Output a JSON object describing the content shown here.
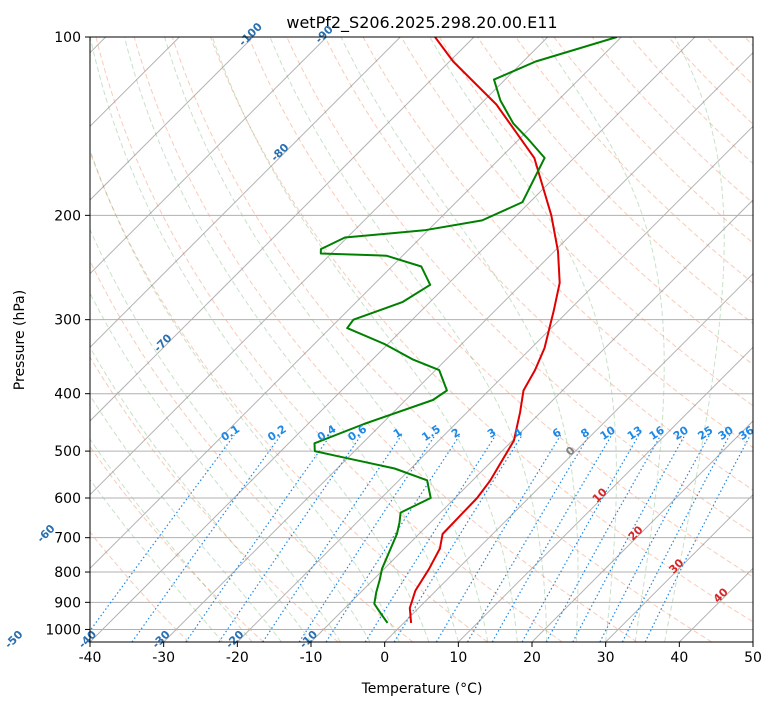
{
  "chart_data": {
    "type": "line",
    "title": "wetPf2_S206.2025.298.20.00.E11",
    "xlabel": "Temperature (°C)",
    "ylabel": "Pressure (hPa)",
    "xlim": [
      -40,
      50
    ],
    "ylim": [
      1050,
      100
    ],
    "y_scale": "log",
    "skew": 1.0,
    "grid": true,
    "x_ticks": [
      -40,
      -30,
      -20,
      -10,
      0,
      10,
      20,
      30,
      40,
      50
    ],
    "y_ticks": [
      1000,
      900,
      800,
      700,
      600,
      500,
      400,
      300,
      200,
      100
    ],
    "series": [
      {
        "color": "#e00000",
        "points": [
          [
            1.0,
            975
          ],
          [
            -1.2,
            920
          ],
          [
            -2.8,
            860
          ],
          [
            -3.9,
            790
          ],
          [
            -5.2,
            730
          ],
          [
            -6.8,
            690
          ],
          [
            -6.9,
            640
          ],
          [
            -7.0,
            600
          ],
          [
            -7.6,
            560
          ],
          [
            -9.8,
            480
          ],
          [
            -12.8,
            430
          ],
          [
            -15.3,
            395
          ],
          [
            -16.5,
            365
          ],
          [
            -18.2,
            335
          ],
          [
            -22.0,
            290
          ],
          [
            -25.0,
            260
          ],
          [
            -29.5,
            230
          ],
          [
            -35.3,
            200
          ],
          [
            -45.4,
            160
          ],
          [
            -57.8,
            130
          ],
          [
            -69.5,
            110
          ],
          [
            -75.3,
            100
          ]
        ]
      },
      {
        "color": "#008000",
        "points": [
          [
            -2.2,
            975
          ],
          [
            -4.7,
            935
          ],
          [
            -6.6,
            905
          ],
          [
            -7.9,
            865
          ],
          [
            -9.1,
            825
          ],
          [
            -10.3,
            790
          ],
          [
            -11.6,
            740
          ],
          [
            -13.0,
            690
          ],
          [
            -14.2,
            660
          ],
          [
            -15.4,
            635
          ],
          [
            -13.3,
            600
          ],
          [
            -16.2,
            560
          ],
          [
            -22.2,
            535
          ],
          [
            -31.6,
            510
          ],
          [
            -35.4,
            500
          ],
          [
            -36.5,
            485
          ],
          [
            -32.4,
            450
          ],
          [
            -26.3,
            410
          ],
          [
            -25.7,
            395
          ],
          [
            -29.5,
            365
          ],
          [
            -34.6,
            350
          ],
          [
            -40.4,
            330
          ],
          [
            -47.7,
            310
          ],
          [
            -48.0,
            300
          ],
          [
            -43.7,
            280
          ],
          [
            -42.3,
            262
          ],
          [
            -46.0,
            244
          ],
          [
            -52.2,
            234
          ],
          [
            -61.4,
            232
          ],
          [
            -62.0,
            228
          ],
          [
            -60.3,
            218
          ],
          [
            -50.5,
            212
          ],
          [
            -44.0,
            204
          ],
          [
            -41.0,
            190
          ],
          [
            -44.0,
            160
          ],
          [
            -49.1,
            148
          ],
          [
            -52.9,
            140
          ],
          [
            -57.8,
            128
          ],
          [
            -61.5,
            118
          ],
          [
            -58.3,
            110
          ],
          [
            -50.6,
            100
          ]
        ]
      }
    ],
    "annotations": {
      "dry_adiabat_color": "#f2a080",
      "moist_adiabat_color": "#4a9a4a",
      "mixing_ratio_color": "#1e88e5",
      "isotherm_color": "#808080",
      "isotherm_labels": [
        "-100",
        "-90",
        "-80",
        "-70",
        "-60",
        "-50",
        "-40",
        "-30",
        "-20",
        "-10"
      ],
      "isotherm_label_color": "#2a6fb0",
      "mixing_ratio_labels": [
        "0.1",
        "0.2",
        "0.4",
        "0.6",
        "1",
        "1.5",
        "2",
        "3",
        "4",
        "6",
        "8",
        "10",
        "13",
        "16",
        "20",
        "25",
        "30",
        "36"
      ],
      "zero_label": "0",
      "zero_label_color": "#808080",
      "warm_isotherm_labels": [
        "10",
        "20",
        "30",
        "40"
      ],
      "warm_label_color": "#d62728"
    }
  }
}
